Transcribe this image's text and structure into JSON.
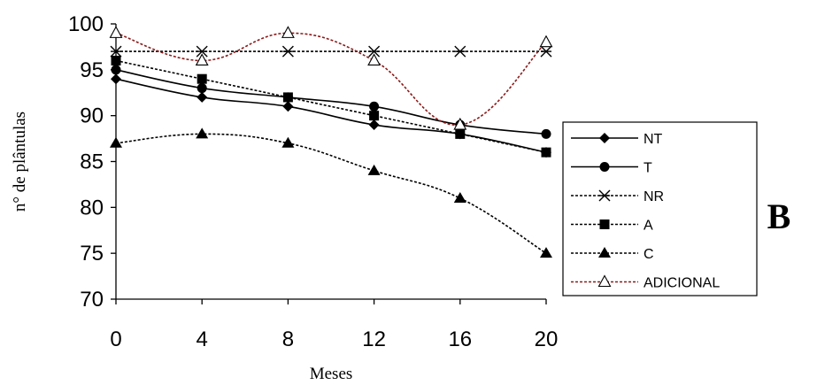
{
  "chart_data": {
    "type": "line",
    "title": "",
    "xlabel": "Meses",
    "ylabel": "n° de plântulas",
    "x": [
      0,
      4,
      8,
      12,
      16,
      20
    ],
    "xticks": [
      "0",
      "4",
      "8",
      "12",
      "16",
      "20"
    ],
    "ylim": [
      70,
      100
    ],
    "yticks": [
      "70",
      "75",
      "80",
      "85",
      "90",
      "95",
      "100"
    ],
    "grid": false,
    "legend": "right",
    "panel_label": "B",
    "series": [
      {
        "name": "NT",
        "values": [
          94,
          92,
          91,
          89,
          88,
          86
        ],
        "marker": "diamond",
        "line": "solid",
        "color": "#000000",
        "smooth": true
      },
      {
        "name": "T",
        "values": [
          95,
          93,
          92,
          91,
          89,
          88
        ],
        "marker": "circle",
        "line": "solid",
        "color": "#000000",
        "smooth": true
      },
      {
        "name": "NR",
        "values": [
          97,
          97,
          97,
          97,
          97,
          97
        ],
        "marker": "asterisk",
        "line": "dotted",
        "color": "#000000",
        "smooth": false
      },
      {
        "name": "A",
        "values": [
          96,
          94,
          92,
          90,
          88,
          86
        ],
        "marker": "square",
        "line": "dotted",
        "color": "#000000",
        "smooth": false
      },
      {
        "name": "C",
        "values": [
          87,
          88,
          87,
          84,
          81,
          75
        ],
        "marker": "triangle",
        "line": "dotted",
        "color": "#000000",
        "smooth": true
      },
      {
        "name": "ADICIONAL",
        "values": [
          99,
          96,
          99,
          96,
          89,
          98
        ],
        "marker": "triangle-open",
        "line": "dotted",
        "color": "#8b1a1a",
        "smooth": true
      }
    ]
  }
}
